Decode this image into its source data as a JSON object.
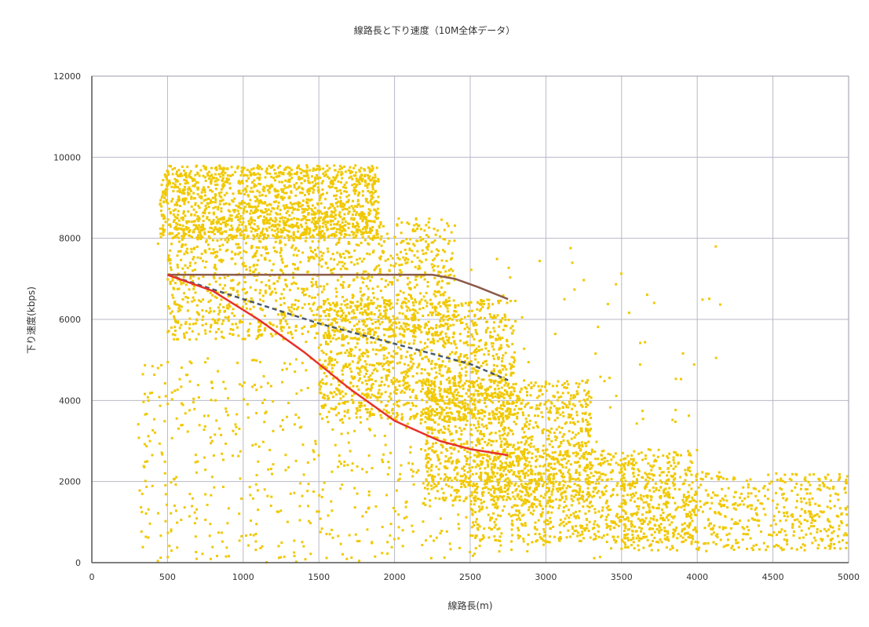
{
  "chart_data": {
    "type": "scatter",
    "title": "線路長と下り速度（10M全体データ）",
    "xlabel": "線路長(m)",
    "ylabel": "下り速度(kbps)",
    "xlim": [
      0,
      5000
    ],
    "ylim": [
      0,
      12000
    ],
    "x_ticks": [
      0,
      500,
      1000,
      1500,
      2000,
      2500,
      3000,
      3500,
      4000,
      4500,
      5000
    ],
    "y_ticks": [
      0,
      2000,
      4000,
      6000,
      8000,
      10000,
      12000
    ],
    "grid": true,
    "legend": "none",
    "scatter_color": "#f0c800",
    "scatter_clusters": [
      {
        "x_range": [
          450,
          1900
        ],
        "y_range": [
          8000,
          9800
        ],
        "count": 1400
      },
      {
        "x_range": [
          500,
          2400
        ],
        "y_range": [
          5500,
          8500
        ],
        "count": 1300
      },
      {
        "x_range": [
          1500,
          2800
        ],
        "y_range": [
          3500,
          6500
        ],
        "count": 1200
      },
      {
        "x_range": [
          2200,
          3300
        ],
        "y_range": [
          1500,
          4500
        ],
        "count": 1100
      },
      {
        "x_range": [
          2500,
          4000
        ],
        "y_range": [
          500,
          2800
        ],
        "count": 1000
      },
      {
        "x_range": [
          3500,
          5000
        ],
        "y_range": [
          300,
          2200
        ],
        "count": 600
      },
      {
        "x_range": [
          300,
          2700
        ],
        "y_range": [
          0,
          5000
        ],
        "count": 500
      },
      {
        "x_range": [
          300,
          4200
        ],
        "y_range": [
          0,
          8000
        ],
        "count": 250
      }
    ],
    "series": [
      {
        "color": "#8b5a4a",
        "style": "solid",
        "x": [
          500,
          1000,
          1500,
          2000,
          2250,
          2400,
          2550,
          2750
        ],
        "y": [
          7100,
          7100,
          7100,
          7100,
          7100,
          7000,
          6800,
          6500
        ]
      },
      {
        "color": "#4a5a6a",
        "style": "dashed",
        "x": [
          500,
          1000,
          1500,
          2000,
          2500,
          2750
        ],
        "y": [
          7100,
          6500,
          5900,
          5400,
          4900,
          4500
        ]
      },
      {
        "color": "#e8302a",
        "style": "solid",
        "x": [
          500,
          800,
          1100,
          1400,
          1700,
          2000,
          2300,
          2500,
          2750
        ],
        "y": [
          7100,
          6700,
          6000,
          5200,
          4300,
          3500,
          3000,
          2800,
          2650
        ]
      }
    ]
  }
}
